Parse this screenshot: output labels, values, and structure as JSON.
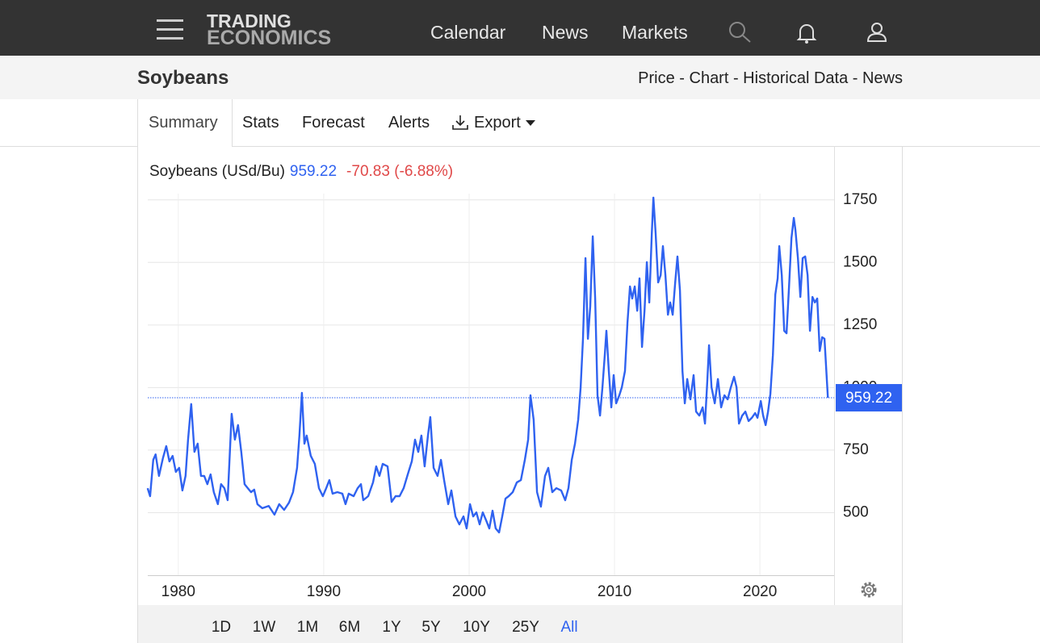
{
  "nav": {
    "logo": [
      "TRADING",
      "ECONOMICS"
    ],
    "links": [
      "Calendar",
      "News",
      "Markets"
    ]
  },
  "page_title": "Soybeans",
  "breadcrumbs": "Price - Chart - Historical Data - News",
  "tabs": [
    "Summary",
    "Stats",
    "Forecast",
    "Alerts",
    "Export"
  ],
  "active_tab": "Summary",
  "ranges": [
    "1D",
    "1W",
    "1M",
    "6M",
    "1Y",
    "5Y",
    "10Y",
    "25Y",
    "All"
  ],
  "active_range": "All",
  "chart_data": {
    "type": "line",
    "current": 959.22,
    "change": "-70.83 (-6.88%)",
    "series": [
      {
        "name": "Soybeans (USd/Bu)",
        "color": "#2f62f0",
        "x": [
          1977.89,
          1978.06,
          1978.28,
          1978.44,
          1978.67,
          1978.94,
          1979.17,
          1979.39,
          1979.61,
          1979.83,
          1980.06,
          1980.28,
          1980.5,
          1980.67,
          1980.89,
          1981.11,
          1981.33,
          1981.56,
          1981.78,
          1982.0,
          1982.22,
          1982.44,
          1982.72,
          1982.94,
          1983.17,
          1983.39,
          1983.67,
          1983.89,
          1984.11,
          1984.33,
          1984.56,
          1984.78,
          1985.0,
          1985.22,
          1985.44,
          1985.78,
          1986.22,
          1986.61,
          1986.94,
          1987.28,
          1987.61,
          1987.89,
          1988.17,
          1988.33,
          1988.5,
          1988.67,
          1988.83,
          1989.11,
          1989.39,
          1989.67,
          1989.94,
          1990.17,
          1990.39,
          1990.61,
          1990.94,
          1991.28,
          1991.5,
          1991.72,
          1992.06,
          1992.33,
          1992.56,
          1992.72,
          1993.06,
          1993.39,
          1993.61,
          1993.83,
          1994.06,
          1994.39,
          1994.67,
          1994.94,
          1995.22,
          1995.5,
          1995.78,
          1996.06,
          1996.28,
          1996.5,
          1996.72,
          1996.94,
          1997.17,
          1997.33,
          1997.56,
          1997.83,
          1998.06,
          1998.28,
          1998.56,
          1998.78,
          1999.06,
          1999.33,
          1999.61,
          1999.83,
          2000.06,
          2000.28,
          2000.5,
          2000.72,
          2000.94,
          2001.17,
          2001.39,
          2001.61,
          2001.83,
          2002.06,
          2002.28,
          2002.5,
          2002.72,
          2003.0,
          2003.28,
          2003.56,
          2003.83,
          2004.06,
          2004.22,
          2004.44,
          2004.67,
          2004.94,
          2005.22,
          2005.44,
          2005.72,
          2006.0,
          2006.33,
          2006.61,
          2006.83,
          2007.06,
          2007.28,
          2007.5,
          2007.67,
          2007.83,
          2008.0,
          2008.17,
          2008.33,
          2008.5,
          2008.67,
          2008.83,
          2009.0,
          2009.17,
          2009.33,
          2009.44,
          2009.61,
          2009.78,
          2009.94,
          2010.11,
          2010.33,
          2010.5,
          2010.72,
          2010.89,
          2011.06,
          2011.22,
          2011.39,
          2011.56,
          2011.72,
          2011.89,
          2012.06,
          2012.22,
          2012.39,
          2012.56,
          2012.67,
          2012.83,
          2013.0,
          2013.17,
          2013.33,
          2013.5,
          2013.67,
          2013.83,
          2014.0,
          2014.17,
          2014.33,
          2014.5,
          2014.67,
          2014.83,
          2015.0,
          2015.22,
          2015.44,
          2015.61,
          2015.83,
          2016.06,
          2016.22,
          2016.39,
          2016.5,
          2016.67,
          2016.89,
          2017.11,
          2017.33,
          2017.56,
          2017.78,
          2018.0,
          2018.22,
          2018.39,
          2018.56,
          2018.78,
          2019.0,
          2019.22,
          2019.44,
          2019.67,
          2019.83,
          2020.06,
          2020.22,
          2020.39,
          2020.56,
          2020.72,
          2020.89,
          2021.06,
          2021.22,
          2021.33,
          2021.5,
          2021.67,
          2021.83,
          2022.0,
          2022.17,
          2022.33,
          2022.44,
          2022.61,
          2022.78,
          2022.94,
          2023.11,
          2023.28,
          2023.44,
          2023.61,
          2023.78,
          2023.94,
          2024.11,
          2024.28,
          2024.44,
          2024.67
        ],
        "values": [
          598,
          566,
          711,
          733,
          647,
          717,
          766,
          705,
          727,
          663,
          679,
          589,
          647,
          792,
          934,
          743,
          776,
          647,
          647,
          614,
          653,
          582,
          534,
          614,
          598,
          550,
          895,
          792,
          850,
          743,
          614,
          598,
          582,
          592,
          534,
          518,
          527,
          492,
          534,
          511,
          540,
          582,
          679,
          808,
          979,
          776,
          808,
          727,
          695,
          598,
          566,
          598,
          630,
          576,
          582,
          576,
          534,
          576,
          566,
          598,
          614,
          550,
          566,
          621,
          685,
          647,
          695,
          685,
          543,
          566,
          566,
          598,
          653,
          705,
          792,
          743,
          808,
          685,
          808,
          882,
          679,
          647,
          711,
          630,
          534,
          589,
          485,
          453,
          485,
          437,
          534,
          485,
          501,
          453,
          501,
          469,
          437,
          508,
          437,
          421,
          485,
          556,
          566,
          582,
          621,
          630,
          711,
          792,
          969,
          872,
          582,
          524,
          647,
          679,
          582,
          598,
          589,
          550,
          598,
          711,
          776,
          872,
          1001,
          1195,
          1517,
          1195,
          1324,
          1604,
          1356,
          969,
          888,
          1001,
          1130,
          1227,
          1066,
          921,
          1050,
          937,
          969,
          1001,
          1066,
          1259,
          1404,
          1356,
          1404,
          1307,
          1436,
          1162,
          1307,
          1501,
          1340,
          1614,
          1759,
          1614,
          1420,
          1449,
          1565,
          1449,
          1291,
          1340,
          1291,
          1420,
          1524,
          1388,
          1066,
          937,
          1034,
          953,
          1050,
          904,
          888,
          921,
          856,
          1034,
          1169,
          1001,
          937,
          1034,
          921,
          969,
          953,
          1001,
          1043,
          1001,
          856,
          888,
          904,
          866,
          879,
          898,
          879,
          946,
          888,
          850,
          904,
          975,
          1130,
          1372,
          1436,
          1565,
          1449,
          1227,
          1217,
          1404,
          1598,
          1678,
          1630,
          1517,
          1362,
          1517,
          1524,
          1449,
          1227,
          1362,
          1340,
          1356,
          1146,
          1201,
          1195,
          959.22
        ]
      }
    ],
    "xlim": [
      1977.9,
      2025.1
    ],
    "ylim": [
      250,
      1775
    ],
    "xticks": [
      1980,
      1990,
      2000,
      2010,
      2020
    ],
    "yticks": [
      500,
      750,
      1000,
      1250,
      1500,
      1750
    ],
    "grid": true
  }
}
